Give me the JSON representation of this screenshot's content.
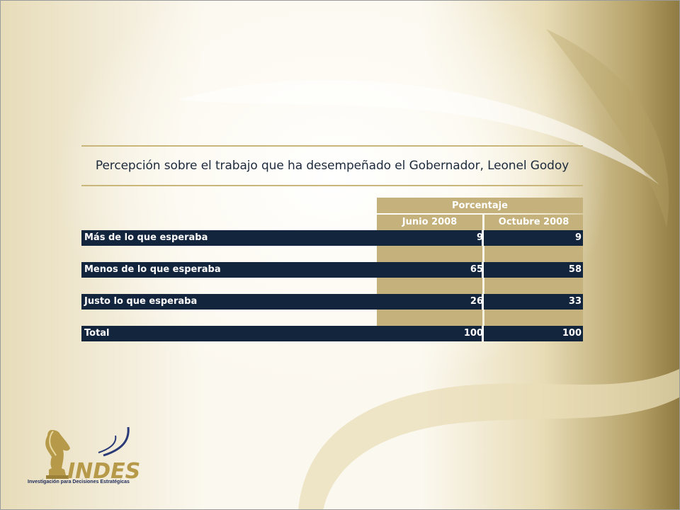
{
  "slide": {
    "title": "Percepción sobre el trabajo que ha desempeñado el Gobernador, Leonel Godoy"
  },
  "table": {
    "group_header": "Porcentaje",
    "columns": [
      "Junio 2008",
      "Octubre 2008"
    ],
    "rows": [
      {
        "label": "Más de lo que esperaba",
        "values": [
          "9",
          "9"
        ]
      },
      {
        "label": "Menos de lo que esperaba",
        "values": [
          "65",
          "58"
        ]
      },
      {
        "label": "Justo lo que esperaba",
        "values": [
          "26",
          "33"
        ]
      },
      {
        "label": "Total",
        "values": [
          "100",
          "100"
        ]
      }
    ]
  },
  "logo": {
    "name": "INDES",
    "tagline": "Investigación para Decisiones Estratégicas"
  },
  "colors": {
    "navy": "#13243d",
    "gold": "#c4b17c"
  }
}
